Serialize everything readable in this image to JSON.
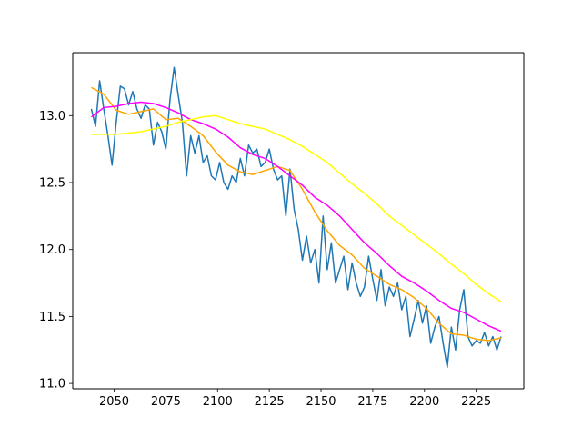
{
  "chart_data": {
    "type": "line",
    "title": "",
    "xlabel": "",
    "ylabel": "",
    "xlim": [
      2030,
      2248
    ],
    "ylim": [
      10.96,
      13.47
    ],
    "xticks": [
      2050,
      2075,
      2100,
      2125,
      2150,
      2175,
      2200,
      2225
    ],
    "yticks": [
      11.0,
      11.5,
      12.0,
      12.5,
      13.0
    ],
    "xtick_labels": [
      "2050",
      "2075",
      "2100",
      "2125",
      "2150",
      "2175",
      "2200",
      "2225"
    ],
    "ytick_labels": [
      "11.0",
      "11.5",
      "12.0",
      "12.5",
      "13.0"
    ],
    "grid": false,
    "series": [
      {
        "color": "#1f77b4",
        "x": [
          2039,
          2041,
          2043,
          2045,
          2047,
          2049,
          2051,
          2053,
          2055,
          2057,
          2059,
          2061,
          2063,
          2065,
          2067,
          2069,
          2071,
          2073,
          2075,
          2077,
          2079,
          2081,
          2083,
          2085,
          2087,
          2089,
          2091,
          2093,
          2095,
          2097,
          2099,
          2101,
          2103,
          2105,
          2107,
          2109,
          2111,
          2113,
          2115,
          2117,
          2119,
          2121,
          2123,
          2125,
          2127,
          2129,
          2131,
          2133,
          2135,
          2137,
          2139,
          2141,
          2143,
          2145,
          2147,
          2149,
          2151,
          2153,
          2155,
          2157,
          2159,
          2161,
          2163,
          2165,
          2167,
          2169,
          2171,
          2173,
          2175,
          2177,
          2179,
          2181,
          2183,
          2185,
          2187,
          2189,
          2191,
          2193,
          2195,
          2197,
          2199,
          2201,
          2203,
          2205,
          2207,
          2209,
          2211,
          2213,
          2215,
          2217,
          2219,
          2221,
          2223,
          2225,
          2227,
          2229,
          2231,
          2233,
          2235,
          2237
        ],
        "y": [
          13.05,
          12.92,
          13.26,
          13.05,
          12.85,
          12.63,
          12.95,
          13.22,
          13.2,
          13.08,
          13.18,
          13.05,
          12.98,
          13.08,
          13.05,
          12.78,
          12.95,
          12.88,
          12.75,
          13.12,
          13.36,
          13.15,
          12.95,
          12.55,
          12.85,
          12.72,
          12.85,
          12.65,
          12.7,
          12.55,
          12.52,
          12.65,
          12.5,
          12.45,
          12.55,
          12.5,
          12.68,
          12.55,
          12.78,
          12.72,
          12.75,
          12.62,
          12.65,
          12.75,
          12.6,
          12.52,
          12.55,
          12.25,
          12.6,
          12.3,
          12.15,
          11.92,
          12.1,
          11.9,
          12.0,
          11.75,
          12.25,
          11.85,
          12.05,
          11.75,
          11.85,
          11.95,
          11.7,
          11.9,
          11.75,
          11.65,
          11.72,
          11.95,
          11.78,
          11.62,
          11.85,
          11.58,
          11.72,
          11.65,
          11.75,
          11.55,
          11.65,
          11.35,
          11.48,
          11.62,
          11.45,
          11.58,
          11.3,
          11.42,
          11.5,
          11.3,
          11.12,
          11.42,
          11.25,
          11.55,
          11.7,
          11.35,
          11.28,
          11.32,
          11.3,
          11.38,
          11.28,
          11.35,
          11.25,
          11.35
        ]
      },
      {
        "color": "#ffa500",
        "x": [
          2039,
          2045,
          2051,
          2057,
          2063,
          2069,
          2075,
          2081,
          2087,
          2093,
          2099,
          2105,
          2111,
          2117,
          2123,
          2129,
          2135,
          2141,
          2147,
          2153,
          2159,
          2165,
          2171,
          2177,
          2183,
          2189,
          2195,
          2201,
          2207,
          2213,
          2219,
          2225,
          2231,
          2237
        ],
        "y": [
          13.21,
          13.16,
          13.04,
          13.01,
          13.03,
          13.05,
          12.97,
          12.98,
          12.92,
          12.85,
          12.73,
          12.63,
          12.58,
          12.56,
          12.59,
          12.62,
          12.59,
          12.45,
          12.28,
          12.14,
          12.03,
          11.96,
          11.86,
          11.8,
          11.74,
          11.7,
          11.64,
          11.56,
          11.45,
          11.37,
          11.36,
          11.33,
          11.32,
          11.34
        ]
      },
      {
        "color": "#ff00ff",
        "x": [
          2039,
          2045,
          2051,
          2057,
          2063,
          2069,
          2075,
          2081,
          2087,
          2093,
          2099,
          2105,
          2111,
          2117,
          2123,
          2129,
          2135,
          2141,
          2147,
          2153,
          2159,
          2165,
          2171,
          2177,
          2183,
          2189,
          2195,
          2201,
          2207,
          2213,
          2219,
          2225,
          2231,
          2237
        ],
        "y": [
          12.99,
          13.06,
          13.07,
          13.09,
          13.1,
          13.09,
          13.06,
          13.02,
          12.97,
          12.94,
          12.9,
          12.84,
          12.76,
          12.71,
          12.68,
          12.62,
          12.55,
          12.48,
          12.39,
          12.33,
          12.25,
          12.15,
          12.05,
          11.97,
          11.88,
          11.8,
          11.75,
          11.69,
          11.62,
          11.56,
          11.53,
          11.48,
          11.43,
          11.39
        ]
      },
      {
        "color": "#ffff00",
        "x": [
          2039,
          2045,
          2051,
          2057,
          2063,
          2069,
          2075,
          2081,
          2087,
          2093,
          2099,
          2105,
          2111,
          2117,
          2123,
          2129,
          2135,
          2141,
          2147,
          2153,
          2159,
          2165,
          2171,
          2177,
          2183,
          2189,
          2195,
          2201,
          2207,
          2213,
          2219,
          2225,
          2231,
          2237
        ],
        "y": [
          12.86,
          12.86,
          12.86,
          12.87,
          12.88,
          12.9,
          12.92,
          12.95,
          12.97,
          12.99,
          13.0,
          12.97,
          12.94,
          12.92,
          12.9,
          12.86,
          12.82,
          12.77,
          12.71,
          12.65,
          12.57,
          12.49,
          12.42,
          12.34,
          12.25,
          12.18,
          12.11,
          12.04,
          11.97,
          11.89,
          11.82,
          11.74,
          11.67,
          11.61
        ]
      }
    ]
  }
}
